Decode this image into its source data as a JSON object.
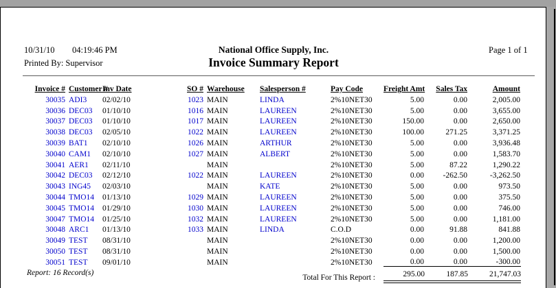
{
  "report": {
    "date": "10/31/10",
    "time": "04:19:46 PM",
    "printed_by": "Printed By: Supervisor",
    "company_name": "National Office Supply, Inc.",
    "title": "Invoice Summary Report",
    "page_indicator": "Page 1 of 1",
    "record_count": "Report: 16 Record(s)",
    "total_label": "Total For This Report :"
  },
  "colors": {
    "link_blue": "#0000cc",
    "page_background": "#ffffff",
    "frame_gray": "#a7a7a7"
  },
  "table": {
    "columns": [
      {
        "key": "invoice",
        "label": "Invoice #",
        "align": "right",
        "blue": true
      },
      {
        "key": "customer",
        "label": "Customer #",
        "align": "left",
        "blue": true
      },
      {
        "key": "inv_date",
        "label": "Inv Date",
        "align": "left",
        "blue": false
      },
      {
        "key": "so",
        "label": "SO #",
        "align": "right",
        "blue": true
      },
      {
        "key": "warehouse",
        "label": "Warehouse",
        "align": "left",
        "blue": false
      },
      {
        "key": "salesperson",
        "label": "Salesperson #",
        "align": "left",
        "blue": true
      },
      {
        "key": "pay_code",
        "label": "Pay Code",
        "align": "left",
        "blue": false
      },
      {
        "key": "freight",
        "label": "Freight Amt",
        "align": "right",
        "blue": false
      },
      {
        "key": "sales_tax",
        "label": "Sales Tax",
        "align": "right",
        "blue": false
      },
      {
        "key": "amount",
        "label": "Amount",
        "align": "right",
        "blue": false
      }
    ],
    "rows": [
      {
        "invoice": "30035",
        "customer": "ADI3",
        "inv_date": "02/02/10",
        "so": "1023",
        "warehouse": "MAIN",
        "salesperson": "LINDA",
        "pay_code": "2%10NET30",
        "freight": "5.00",
        "sales_tax": "0.00",
        "amount": "2,005.00"
      },
      {
        "invoice": "30036",
        "customer": "DEC03",
        "inv_date": "01/10/10",
        "so": "1016",
        "warehouse": "MAIN",
        "salesperson": "LAUREEN",
        "pay_code": "2%10NET30",
        "freight": "5.00",
        "sales_tax": "0.00",
        "amount": "3,655.00"
      },
      {
        "invoice": "30037",
        "customer": "DEC03",
        "inv_date": "01/10/10",
        "so": "1017",
        "warehouse": "MAIN",
        "salesperson": "LAUREEN",
        "pay_code": "2%10NET30",
        "freight": "150.00",
        "sales_tax": "0.00",
        "amount": "2,650.00"
      },
      {
        "invoice": "30038",
        "customer": "DEC03",
        "inv_date": "02/05/10",
        "so": "1022",
        "warehouse": "MAIN",
        "salesperson": "LAUREEN",
        "pay_code": "2%10NET30",
        "freight": "100.00",
        "sales_tax": "271.25",
        "amount": "3,371.25"
      },
      {
        "invoice": "30039",
        "customer": "BAT1",
        "inv_date": "02/10/10",
        "so": "1026",
        "warehouse": "MAIN",
        "salesperson": "ARTHUR",
        "pay_code": "2%10NET30",
        "freight": "5.00",
        "sales_tax": "0.00",
        "amount": "3,936.48"
      },
      {
        "invoice": "30040",
        "customer": "CAM1",
        "inv_date": "02/10/10",
        "so": "1027",
        "warehouse": "MAIN",
        "salesperson": "ALBERT",
        "pay_code": "2%10NET30",
        "freight": "5.00",
        "sales_tax": "0.00",
        "amount": "1,583.70"
      },
      {
        "invoice": "30041",
        "customer": "AER1",
        "inv_date": "02/11/10",
        "so": "",
        "warehouse": "MAIN",
        "salesperson": "",
        "pay_code": "2%10NET30",
        "freight": "5.00",
        "sales_tax": "87.22",
        "amount": "1,290.22"
      },
      {
        "invoice": "30042",
        "customer": "DEC03",
        "inv_date": "02/12/10",
        "so": "1022",
        "warehouse": "MAIN",
        "salesperson": "LAUREEN",
        "pay_code": "2%10NET30",
        "freight": "0.00",
        "sales_tax": "-262.50",
        "amount": "-3,262.50"
      },
      {
        "invoice": "30043",
        "customer": "ING45",
        "inv_date": "02/03/10",
        "so": "",
        "warehouse": "MAIN",
        "salesperson": "KATE",
        "pay_code": "2%10NET30",
        "freight": "5.00",
        "sales_tax": "0.00",
        "amount": "973.50"
      },
      {
        "invoice": "30044",
        "customer": "TMO14",
        "inv_date": "01/13/10",
        "so": "1029",
        "warehouse": "MAIN",
        "salesperson": "LAUREEN",
        "pay_code": "2%10NET30",
        "freight": "5.00",
        "sales_tax": "0.00",
        "amount": "375.50"
      },
      {
        "invoice": "30045",
        "customer": "TMO14",
        "inv_date": "01/29/10",
        "so": "1030",
        "warehouse": "MAIN",
        "salesperson": "LAUREEN",
        "pay_code": "2%10NET30",
        "freight": "5.00",
        "sales_tax": "0.00",
        "amount": "746.00"
      },
      {
        "invoice": "30047",
        "customer": "TMO14",
        "inv_date": "01/25/10",
        "so": "1032",
        "warehouse": "MAIN",
        "salesperson": "LAUREEN",
        "pay_code": "2%10NET30",
        "freight": "5.00",
        "sales_tax": "0.00",
        "amount": "1,181.00"
      },
      {
        "invoice": "30048",
        "customer": "ARC1",
        "inv_date": "01/13/10",
        "so": "1033",
        "warehouse": "MAIN",
        "salesperson": "LINDA",
        "pay_code": "C.O.D",
        "freight": "0.00",
        "sales_tax": "91.88",
        "amount": "841.88"
      },
      {
        "invoice": "30049",
        "customer": "TEST",
        "inv_date": "08/31/10",
        "so": "",
        "warehouse": "MAIN",
        "salesperson": "",
        "pay_code": "2%10NET30",
        "freight": "0.00",
        "sales_tax": "0.00",
        "amount": "1,200.00"
      },
      {
        "invoice": "30050",
        "customer": "TEST",
        "inv_date": "08/31/10",
        "so": "",
        "warehouse": "MAIN",
        "salesperson": "",
        "pay_code": "2%10NET30",
        "freight": "0.00",
        "sales_tax": "0.00",
        "amount": "1,500.00"
      },
      {
        "invoice": "30051",
        "customer": "TEST",
        "inv_date": "09/01/10",
        "so": "",
        "warehouse": "MAIN",
        "salesperson": "",
        "pay_code": "2%10NET30",
        "freight": "0.00",
        "sales_tax": "0.00",
        "amount": "-300.00"
      }
    ],
    "totals": {
      "freight": "295.00",
      "sales_tax": "187.85",
      "amount": "21,747.03"
    }
  }
}
